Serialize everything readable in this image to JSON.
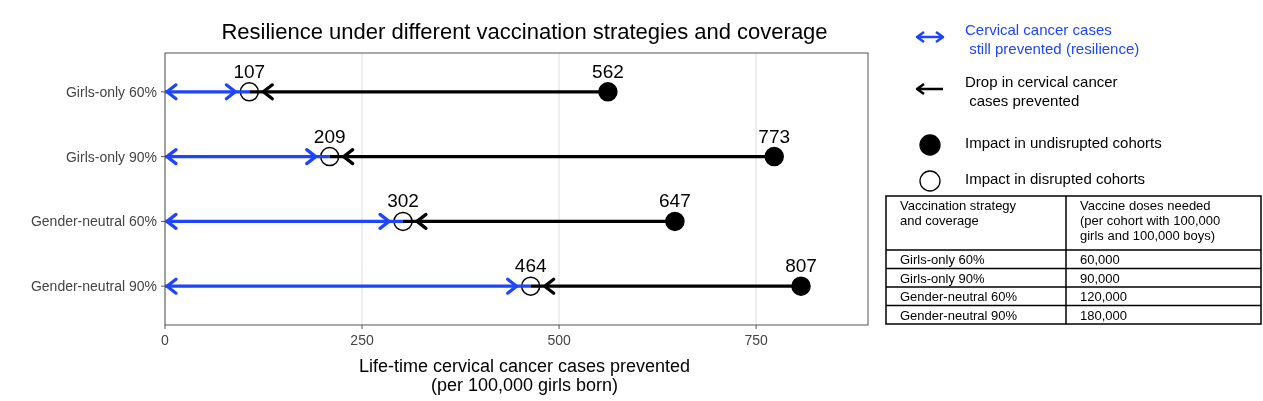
{
  "chart_data": [
    {
      "type": "scatter",
      "orientation": "horizontal",
      "title": "Resilience under different vaccination strategies and coverage",
      "xlabel": "Life-time cervical cancer cases prevented\n(per 100,000 girls born)",
      "categories": [
        "Girls-only 60%",
        "Girls-only 90%",
        "Gender-neutral 60%",
        "Gender-neutral 90%"
      ],
      "series": [
        {
          "type": "bar",
          "name": "Cervical cancer cases\n still prevented (resilience)",
          "color": "#1f45fc",
          "values": [
            107,
            209,
            302,
            464
          ]
        },
        {
          "type": "bar",
          "name": "Drop in cervical cancer\n cases prevented",
          "color": "#000000",
          "base": [
            562,
            773,
            647,
            807
          ],
          "values": [
            -455,
            -564,
            -345,
            -343
          ]
        },
        {
          "type": "scatter",
          "name": "Impact in undisrupted cohorts",
          "color": "#000000",
          "marker": "circle",
          "values": [
            562,
            773,
            647,
            807
          ],
          "value_labels": [
            "562",
            "773",
            "647",
            "807"
          ]
        },
        {
          "type": "scatter",
          "name": "Impact in disrupted cohorts",
          "color": "#ffffff",
          "marker": "circle",
          "values": [
            107,
            209,
            302,
            464
          ],
          "value_labels": [
            "107",
            "209",
            "302",
            "464"
          ]
        }
      ],
      "xlim": [
        0,
        892
      ],
      "xticks": [
        0,
        250,
        500,
        750
      ],
      "grid": "x",
      "legend": "right"
    },
    {
      "type": "other",
      "annotations": [
        "Vaccination strategy\nand coverage",
        "Vaccine doses needed\n(per cohort with 100,000\ngirls and 100,000 boys)",
        "Girls-only 60%",
        "60,000",
        "Girls-only 90%",
        "90,000",
        "Gender-neutral 60%",
        "120,000",
        "Gender-neutral 90%",
        "180,000"
      ]
    }
  ]
}
